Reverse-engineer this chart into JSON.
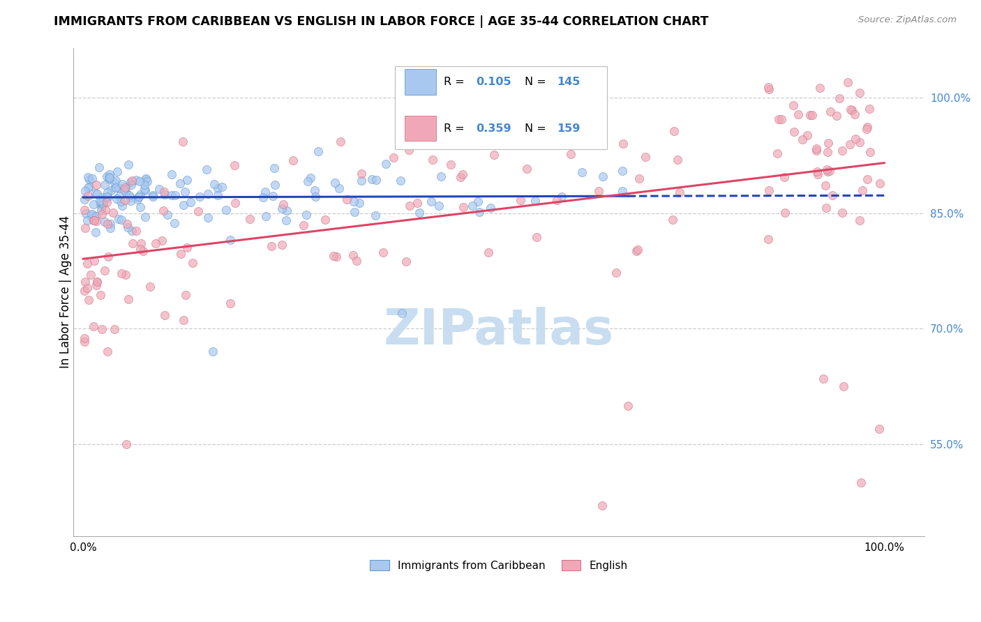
{
  "title": "IMMIGRANTS FROM CARIBBEAN VS ENGLISH IN LABOR FORCE | AGE 35-44 CORRELATION CHART",
  "source": "Source: ZipAtlas.com",
  "ylabel": "In Labor Force | Age 35-44",
  "legend_label_blue": "Immigrants from Caribbean",
  "legend_label_pink": "English",
  "blue_color_face": "#a8c8f0",
  "blue_color_edge": "#6699cc",
  "pink_color_face": "#f0a8b8",
  "pink_color_edge": "#cc7788",
  "blue_line_color": "#2244bb",
  "pink_line_color": "#dd4466",
  "ytick_values": [
    0.55,
    0.7,
    0.85,
    1.0
  ],
  "ytick_labels": [
    "55.0%",
    "70.0%",
    "85.0%",
    "100.0%"
  ],
  "ytick_color": "#4488cc",
  "watermark_text": "ZIPatlas",
  "watermark_color": "#c8ddf0",
  "legend_r_blue": "0.105",
  "legend_n_blue": "145",
  "legend_r_pink": "0.359",
  "legend_n_pink": "159"
}
